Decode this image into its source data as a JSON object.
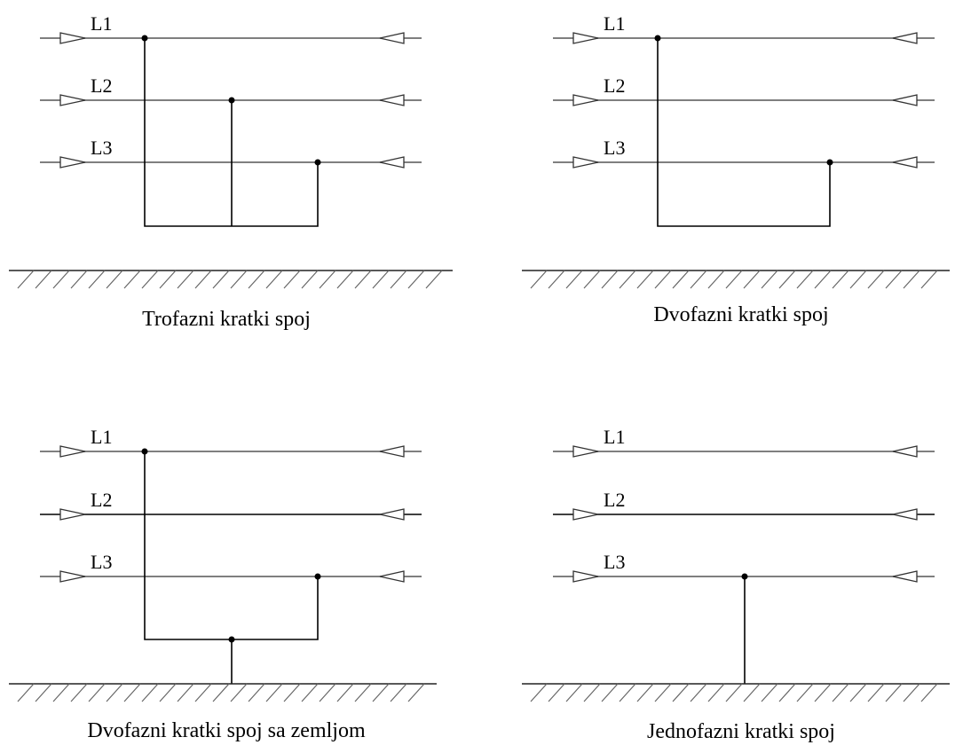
{
  "panels": [
    {
      "caption": "Trofazni kratki spoj",
      "phases": [
        "L1",
        "L2",
        "L3"
      ],
      "fault_phases": [
        "L1",
        "L2",
        "L3"
      ],
      "earth_fault": false
    },
    {
      "caption": "Dvofazni kratki spoj",
      "phases": [
        "L1",
        "L2",
        "L3"
      ],
      "fault_phases": [
        "L1",
        "L3"
      ],
      "earth_fault": false
    },
    {
      "caption": "Dvofazni kratki spoj sa zemljom",
      "phases": [
        "L1",
        "L2",
        "L3"
      ],
      "fault_phases": [
        "L1",
        "L3"
      ],
      "earth_fault": true
    },
    {
      "caption": "Jednofazni kratki spoj",
      "phases": [
        "L1",
        "L2",
        "L3"
      ],
      "fault_phases": [
        "L3"
      ],
      "earth_fault": true
    }
  ]
}
